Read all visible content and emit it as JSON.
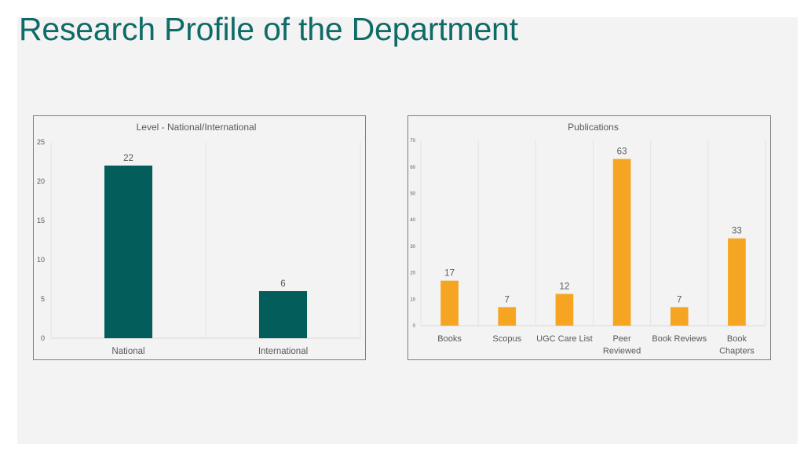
{
  "slide": {
    "title": "Research Profile of the Department"
  },
  "colors": {
    "title": "#0f6b66",
    "level_bar": "#035e5b",
    "pubs_bar": "#f5a522",
    "text": "#595959",
    "grid": "#e3e3e3"
  },
  "chart_data": [
    {
      "type": "bar",
      "title": "Level - National/International",
      "categories": [
        "National",
        "International"
      ],
      "values": [
        22,
        6
      ],
      "data_labels": [
        "22",
        "6"
      ],
      "ylim": [
        0,
        25
      ],
      "yticks": [
        0,
        5,
        10,
        15,
        20,
        25
      ],
      "xlabel": "",
      "ylabel": "",
      "color": "#035e5b",
      "grid": "vertical separators",
      "legend": "none"
    },
    {
      "type": "bar",
      "title": "Publications",
      "categories": [
        "Books",
        "Scopus",
        "UGC Care List",
        "Peer Reviewed",
        "Book Reviews",
        "Book Chapters"
      ],
      "category_lines": [
        [
          "Books"
        ],
        [
          "Scopus"
        ],
        [
          "UGC Care List"
        ],
        [
          "Peer",
          "Reviewed"
        ],
        [
          "Book Reviews"
        ],
        [
          "Book",
          "Chapters"
        ]
      ],
      "values": [
        17,
        7,
        12,
        63,
        7,
        33
      ],
      "data_labels": [
        "17",
        "7",
        "12",
        "63",
        "7",
        "33"
      ],
      "ylim": [
        0,
        70
      ],
      "yticks": [
        0,
        10,
        20,
        30,
        40,
        50,
        60,
        70
      ],
      "xlabel": "",
      "ylabel": "",
      "color": "#f5a522",
      "grid": "vertical separators",
      "legend": "none"
    }
  ]
}
